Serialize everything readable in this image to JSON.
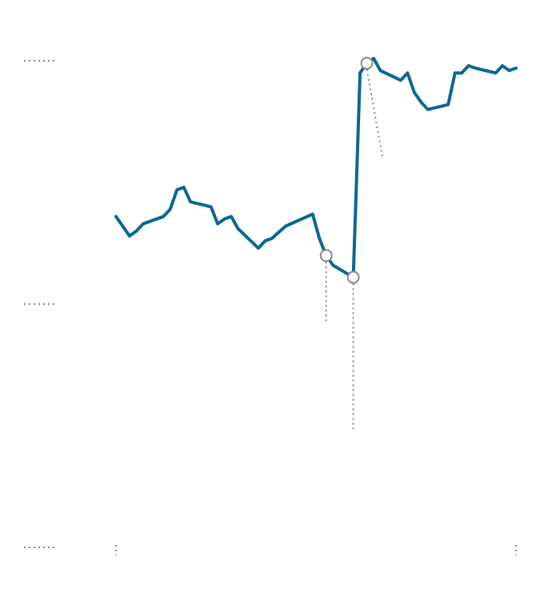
{
  "chart_data": {
    "type": "line",
    "x": [
      0,
      1,
      2,
      3,
      4,
      7,
      8,
      9,
      10,
      11,
      14,
      15,
      16,
      17,
      18,
      21,
      22,
      23,
      25,
      29,
      30,
      31,
      32,
      35,
      36,
      37,
      38,
      39,
      42,
      43,
      44,
      45,
      46,
      49,
      50,
      51,
      52,
      53,
      56,
      57,
      58,
      59
    ],
    "series": [
      {
        "color": "#0b6794",
        "values": [
          1.36,
          1.32,
          1.28,
          1.3,
          1.33,
          1.36,
          1.39,
          1.47,
          1.48,
          1.42,
          1.4,
          1.33,
          1.35,
          1.36,
          1.31,
          1.23,
          1.26,
          1.27,
          1.32,
          1.37,
          1.27,
          1.2,
          1.16,
          1.11,
          1.95,
          1.99,
          2.01,
          1.96,
          1.92,
          1.95,
          1.87,
          1.83,
          1.8,
          1.82,
          1.95,
          1.95,
          1.98,
          1.97,
          1.95,
          1.98,
          1.96,
          1.97
        ]
      }
    ],
    "highlight_points": [
      21,
      23,
      25
    ],
    "xlim": [
      0,
      59
    ],
    "xticks": [
      0,
      59
    ],
    "ylim": [
      0,
      2
    ],
    "yticks": [
      0,
      1,
      2
    ]
  }
}
